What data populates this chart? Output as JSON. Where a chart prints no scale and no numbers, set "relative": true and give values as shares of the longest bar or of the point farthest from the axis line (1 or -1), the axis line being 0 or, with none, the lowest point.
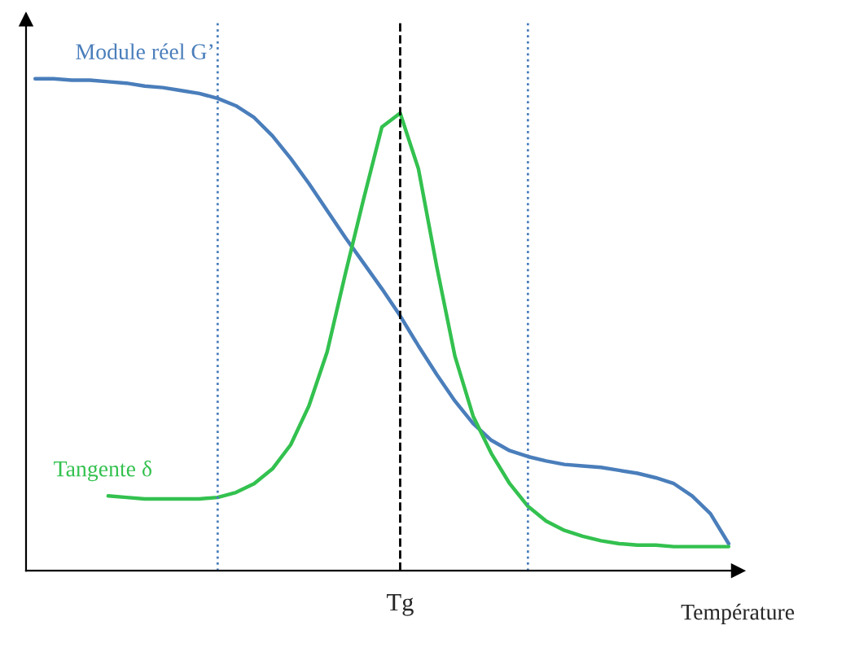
{
  "chart_data": {
    "type": "line",
    "relative": true,
    "xlabel": "Température",
    "annotations": [
      "Tg"
    ],
    "legend": false,
    "marker": "none",
    "categories": [
      null,
      null,
      null,
      null,
      null,
      null,
      null,
      null,
      null,
      null,
      null,
      null,
      null,
      null,
      null,
      null,
      null,
      null,
      null,
      null,
      null,
      null,
      null,
      null,
      null,
      null,
      null,
      null,
      null,
      null,
      null,
      null,
      null,
      null,
      null,
      null,
      null,
      null,
      null
    ],
    "series": [
      {
        "name": "Module réel G’",
        "color": "#4a7ebb",
        "values": [
          1,
          1,
          0.997,
          0.997,
          0.994,
          0.991,
          0.985,
          0.982,
          0.976,
          0.97,
          0.96,
          0.945,
          0.921,
          0.884,
          0.838,
          0.787,
          0.732,
          0.677,
          0.625,
          0.573,
          0.518,
          0.457,
          0.399,
          0.345,
          0.299,
          0.265,
          0.244,
          0.232,
          0.223,
          0.216,
          0.213,
          0.21,
          0.204,
          0.198,
          0.189,
          0.177,
          0.152,
          0.116,
          0.055
        ]
      },
      {
        "name": "Tangente δ",
        "color": "#33c14f",
        "values": [
          null,
          null,
          null,
          null,
          0.152,
          0.149,
          0.146,
          0.146,
          0.146,
          0.146,
          0.149,
          0.159,
          0.177,
          0.207,
          0.256,
          0.335,
          0.445,
          0.604,
          0.756,
          0.902,
          0.93,
          0.817,
          0.619,
          0.436,
          0.314,
          0.238,
          0.177,
          0.131,
          0.101,
          0.082,
          0.07,
          0.061,
          0.055,
          0.052,
          0.052,
          0.049,
          0.049,
          0.049,
          0.049
        ]
      }
    ],
    "grid": false
  }
}
